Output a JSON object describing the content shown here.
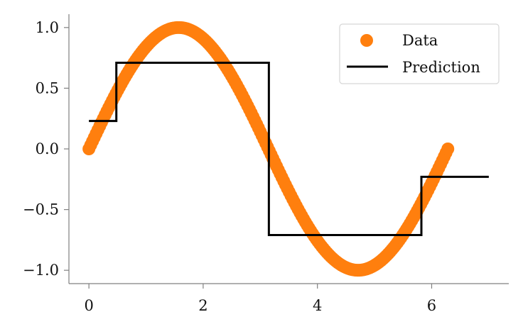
{
  "chart_data": {
    "type": "scatter",
    "xlim": [
      -0.35,
      7.35
    ],
    "ylim": [
      -1.11,
      1.11
    ],
    "x_ticks": [
      0,
      2,
      4,
      6
    ],
    "x_tick_labels": [
      "0",
      "2",
      "4",
      "6"
    ],
    "y_ticks": [
      1.0,
      0.5,
      0.0,
      -0.5,
      -1.0
    ],
    "y_tick_labels": [
      "1.0",
      "0.5",
      "0.0",
      "−0.5",
      "−1.0"
    ],
    "grid": false,
    "legend": {
      "placement": "top-right",
      "entries": [
        {
          "label": "Data",
          "marker": "circle",
          "color": "#ff7f0e"
        },
        {
          "label": "Prediction",
          "marker": "line",
          "color": "#000000"
        }
      ]
    },
    "series": [
      {
        "name": "Data",
        "kind": "scatter",
        "color": "#ff7f0e",
        "function": "sin(x)",
        "x_range": [
          0,
          6.2832
        ],
        "n_points": 200
      },
      {
        "name": "Prediction",
        "kind": "step",
        "color": "#000000",
        "x": [
          0,
          0.48,
          0.48,
          3.15,
          3.15,
          5.82,
          5.82,
          7.0
        ],
        "y": [
          0.23,
          0.23,
          0.71,
          0.71,
          -0.71,
          -0.71,
          -0.23,
          -0.23
        ]
      }
    ]
  }
}
